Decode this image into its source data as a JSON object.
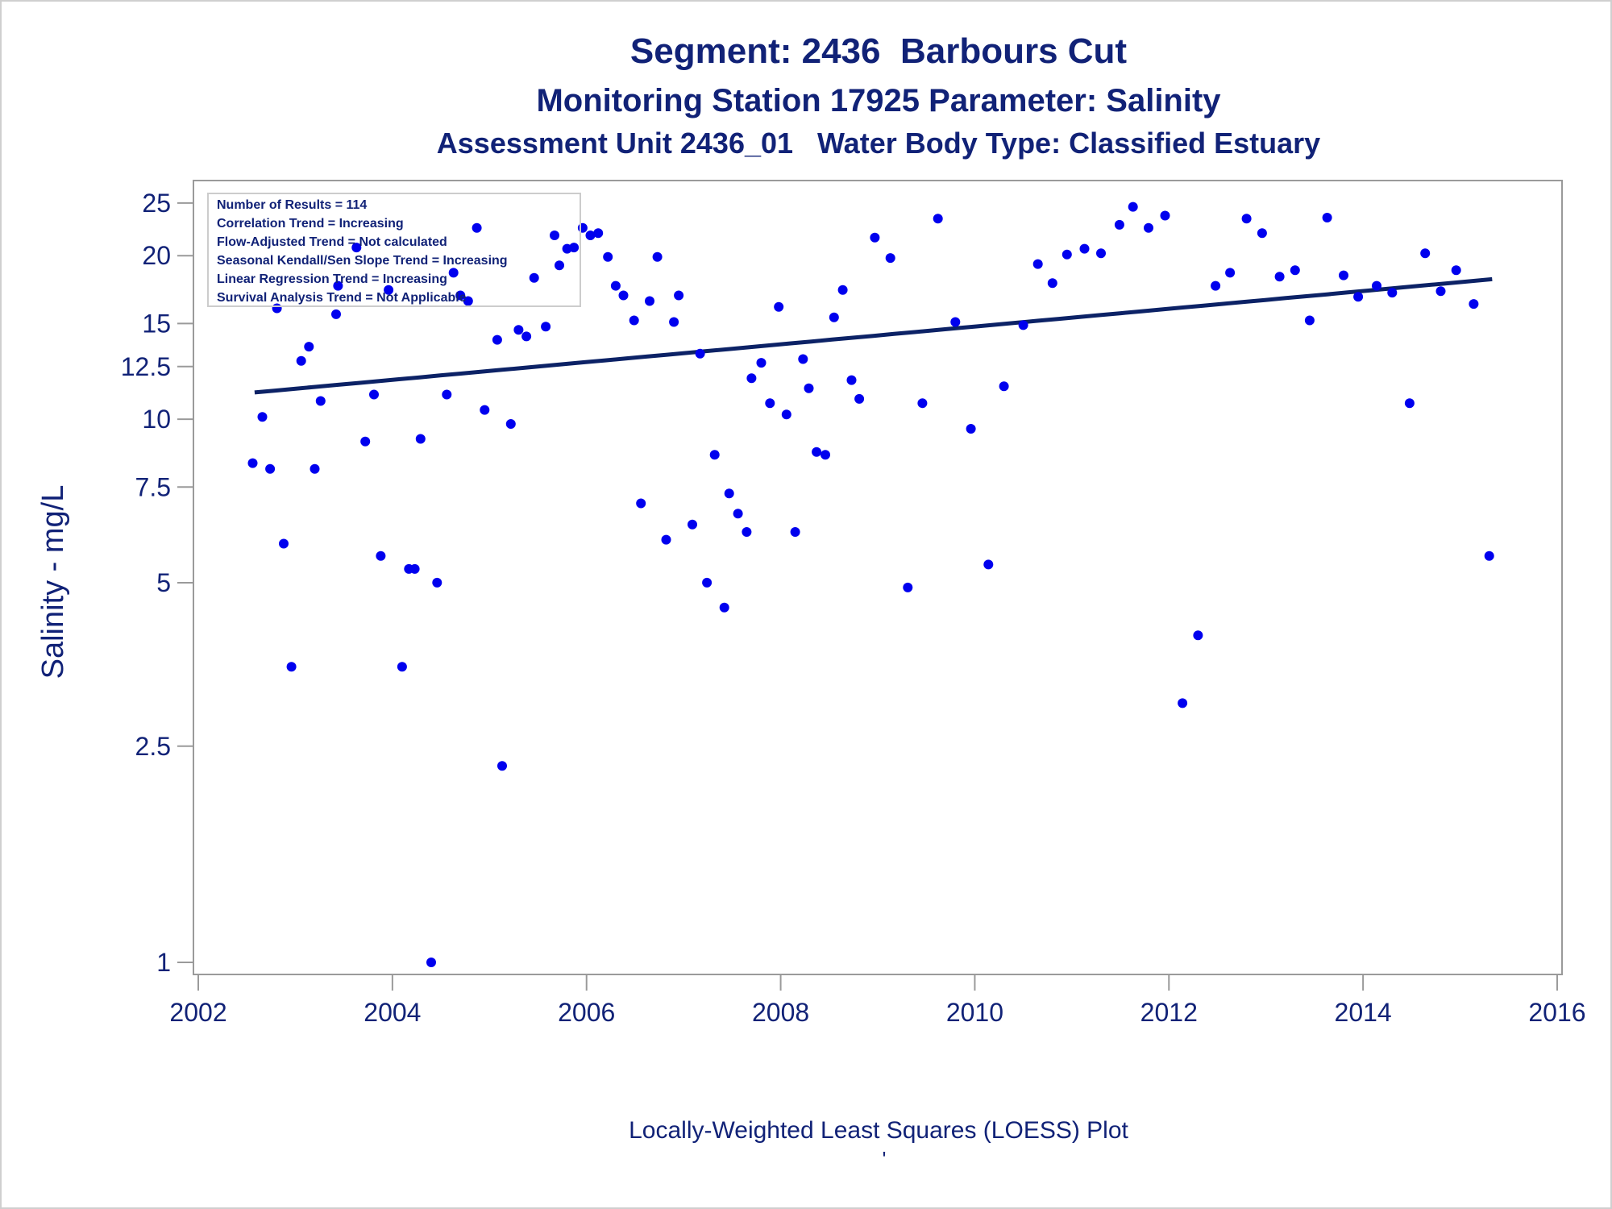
{
  "chart_data": {
    "type": "scatter",
    "title": "Segment: 2436  Barbours Cut",
    "subtitle": "Monitoring Station 17925 Parameter: Salinity",
    "subtitle2": "Assessment Unit 2436_01   Water Body Type: Classified Estuary",
    "xlabel": "",
    "ylabel": "Salinity - mg/L",
    "footnote": "Locally-Weighted Least Squares (LOESS) Plot",
    "footnote_mark": "'",
    "y_scale": "log",
    "xlim": [
      2001.95,
      2016.05
    ],
    "ylim": [
      0.95,
      27.5
    ],
    "x_ticks": [
      2002,
      2004,
      2006,
      2008,
      2010,
      2012,
      2014,
      2016
    ],
    "y_ticks": [
      1,
      2.5,
      5,
      7.5,
      10,
      12.5,
      15,
      20,
      25
    ],
    "y_tick_labels": [
      "1",
      "2.5",
      "5",
      "7.5",
      "10",
      "12.5",
      "15",
      "20",
      "25"
    ],
    "grid": false,
    "legend_position": "top-left",
    "inset_text": [
      "Number of Results = 114",
      "Correlation Trend = Increasing",
      "Flow-Adjusted Trend = Not calculated",
      "Seasonal Kendall/Sen Slope Trend = Increasing",
      "Linear Regression Trend = Increasing",
      "Survival Analysis Trend = Not Applicable"
    ],
    "colors": {
      "points": "#0000ee",
      "trend": "#0c2266",
      "text": "#112277",
      "axis": "#9a9a9a",
      "inset_border": "#cccccc"
    },
    "trend_line": {
      "x": [
        2002.58,
        2015.33
      ],
      "y": [
        11.2,
        18.1
      ]
    },
    "points": [
      [
        2002.56,
        8.3
      ],
      [
        2002.66,
        10.1
      ],
      [
        2002.74,
        8.1
      ],
      [
        2002.81,
        16.0
      ],
      [
        2002.88,
        5.9
      ],
      [
        2002.96,
        3.5
      ],
      [
        2003.06,
        12.8
      ],
      [
        2003.14,
        13.6
      ],
      [
        2003.2,
        8.1
      ],
      [
        2003.26,
        10.8
      ],
      [
        2003.42,
        15.6
      ],
      [
        2003.44,
        17.6
      ],
      [
        2003.63,
        20.7
      ],
      [
        2003.72,
        9.1
      ],
      [
        2003.81,
        11.1
      ],
      [
        2003.88,
        5.6
      ],
      [
        2003.96,
        17.3
      ],
      [
        2004.1,
        3.5
      ],
      [
        2004.17,
        5.3
      ],
      [
        2004.23,
        5.3
      ],
      [
        2004.29,
        9.2
      ],
      [
        2004.4,
        1.0
      ],
      [
        2004.46,
        5.0
      ],
      [
        2004.56,
        11.1
      ],
      [
        2004.63,
        18.6
      ],
      [
        2004.7,
        16.9
      ],
      [
        2004.78,
        16.5
      ],
      [
        2004.87,
        22.5
      ],
      [
        2004.95,
        10.4
      ],
      [
        2005.08,
        14.0
      ],
      [
        2005.13,
        2.3
      ],
      [
        2005.22,
        9.8
      ],
      [
        2005.3,
        14.6
      ],
      [
        2005.38,
        14.2
      ],
      [
        2005.46,
        18.2
      ],
      [
        2005.58,
        14.8
      ],
      [
        2005.67,
        21.8
      ],
      [
        2005.72,
        19.2
      ],
      [
        2005.8,
        20.6
      ],
      [
        2005.87,
        20.7
      ],
      [
        2005.96,
        22.5
      ],
      [
        2006.04,
        21.8
      ],
      [
        2006.12,
        22.0
      ],
      [
        2006.22,
        19.9
      ],
      [
        2006.3,
        17.6
      ],
      [
        2006.38,
        16.9
      ],
      [
        2006.49,
        15.2
      ],
      [
        2006.56,
        7.0
      ],
      [
        2006.65,
        16.5
      ],
      [
        2006.73,
        19.9
      ],
      [
        2006.82,
        6.0
      ],
      [
        2006.9,
        15.1
      ],
      [
        2006.95,
        16.9
      ],
      [
        2007.09,
        6.4
      ],
      [
        2007.17,
        13.2
      ],
      [
        2007.24,
        5.0
      ],
      [
        2007.32,
        8.6
      ],
      [
        2007.42,
        4.5
      ],
      [
        2007.47,
        7.3
      ],
      [
        2007.56,
        6.7
      ],
      [
        2007.65,
        6.2
      ],
      [
        2007.7,
        11.9
      ],
      [
        2007.8,
        12.7
      ],
      [
        2007.89,
        10.7
      ],
      [
        2007.98,
        16.1
      ],
      [
        2008.06,
        10.2
      ],
      [
        2008.15,
        6.2
      ],
      [
        2008.23,
        12.9
      ],
      [
        2008.29,
        11.4
      ],
      [
        2008.37,
        8.7
      ],
      [
        2008.46,
        8.6
      ],
      [
        2008.55,
        15.4
      ],
      [
        2008.64,
        17.3
      ],
      [
        2008.73,
        11.8
      ],
      [
        2008.81,
        10.9
      ],
      [
        2008.97,
        21.6
      ],
      [
        2009.13,
        19.8
      ],
      [
        2009.31,
        4.9
      ],
      [
        2009.46,
        10.7
      ],
      [
        2009.62,
        23.4
      ],
      [
        2009.8,
        15.1
      ],
      [
        2009.96,
        9.6
      ],
      [
        2010.14,
        5.4
      ],
      [
        2010.3,
        11.5
      ],
      [
        2010.5,
        14.9
      ],
      [
        2010.65,
        19.3
      ],
      [
        2010.8,
        17.8
      ],
      [
        2010.95,
        20.1
      ],
      [
        2011.13,
        20.6
      ],
      [
        2011.3,
        20.2
      ],
      [
        2011.49,
        22.8
      ],
      [
        2011.63,
        24.6
      ],
      [
        2011.79,
        22.5
      ],
      [
        2011.96,
        23.7
      ],
      [
        2012.14,
        3.0
      ],
      [
        2012.3,
        4.0
      ],
      [
        2012.48,
        17.6
      ],
      [
        2012.63,
        18.6
      ],
      [
        2012.8,
        23.4
      ],
      [
        2012.96,
        22.0
      ],
      [
        2013.14,
        18.3
      ],
      [
        2013.3,
        18.8
      ],
      [
        2013.45,
        15.2
      ],
      [
        2013.63,
        23.5
      ],
      [
        2013.8,
        18.4
      ],
      [
        2013.95,
        16.8
      ],
      [
        2014.14,
        17.6
      ],
      [
        2014.3,
        17.1
      ],
      [
        2014.48,
        10.7
      ],
      [
        2014.64,
        20.2
      ],
      [
        2014.8,
        17.2
      ],
      [
        2014.96,
        18.8
      ],
      [
        2015.14,
        16.3
      ],
      [
        2015.3,
        5.6
      ]
    ]
  }
}
